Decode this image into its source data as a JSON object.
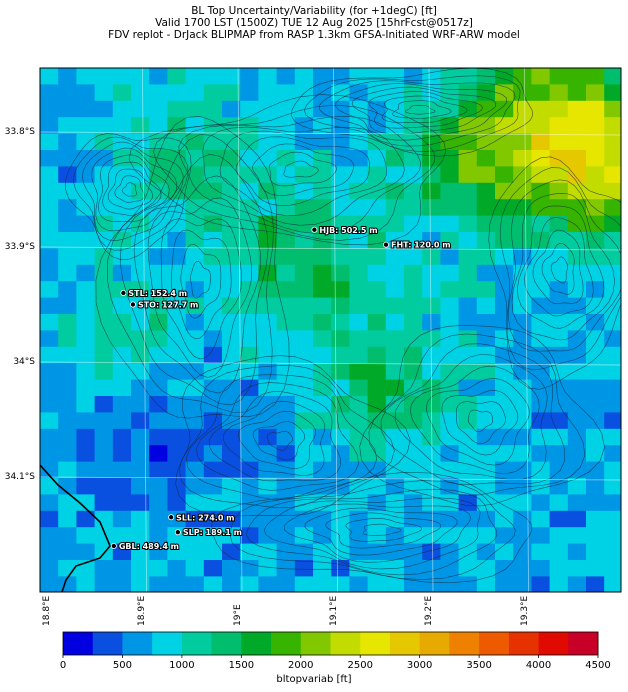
{
  "titles": {
    "line1": "BL Top Uncertainty/Variability (for +1degC) [ft]",
    "line2": "Valid 1700 LST (1500Z) TUE 12 Aug 2025 [15hrFcst@0517z]",
    "line3": "FDV replot - DrJack BLIPMAP from RASP 1.3km GFSA-Initiated WRF-ARW model"
  },
  "axes": {
    "lat_labels": [
      "33.8°S",
      "33.9°S",
      "34°S",
      "34.1°S"
    ],
    "lon_labels": [
      "18.8°E",
      "18.9°E",
      "19°E",
      "19.1°E",
      "19.2°E",
      "19.3°E"
    ]
  },
  "stations": [
    {
      "label": "HJB: 502.5 m",
      "lon": 19.08,
      "lat": -33.885
    },
    {
      "label": "FHT: 120.0 m",
      "lon": 19.155,
      "lat": -33.898
    },
    {
      "label": "STL: 152.4 m",
      "lon": 18.88,
      "lat": -33.94
    },
    {
      "label": "STO: 127.7 m",
      "lon": 18.89,
      "lat": -33.95
    },
    {
      "label": "SLL: 274.0 m",
      "lon": 18.93,
      "lat": -34.135
    },
    {
      "label": "SLP: 189.1 m",
      "lon": 18.937,
      "lat": -34.148
    },
    {
      "label": "GBL: 489.4 m",
      "lon": 18.87,
      "lat": -34.16
    }
  ],
  "colorbar": {
    "title": "bltopvariab [ft]",
    "tick_labels": [
      "0",
      "500",
      "1000",
      "1500",
      "2000",
      "2500",
      "3000",
      "3500",
      "4000",
      "4500"
    ],
    "colors": [
      "#0000e0",
      "#0a50e0",
      "#0096e6",
      "#00d2e6",
      "#00cca0",
      "#00be6e",
      "#00aa28",
      "#37b400",
      "#82c800",
      "#c3dc00",
      "#e6e600",
      "#e6c800",
      "#e6aa00",
      "#ee8200",
      "#ee5a00",
      "#e63200",
      "#e00a00",
      "#c80028"
    ]
  }
}
